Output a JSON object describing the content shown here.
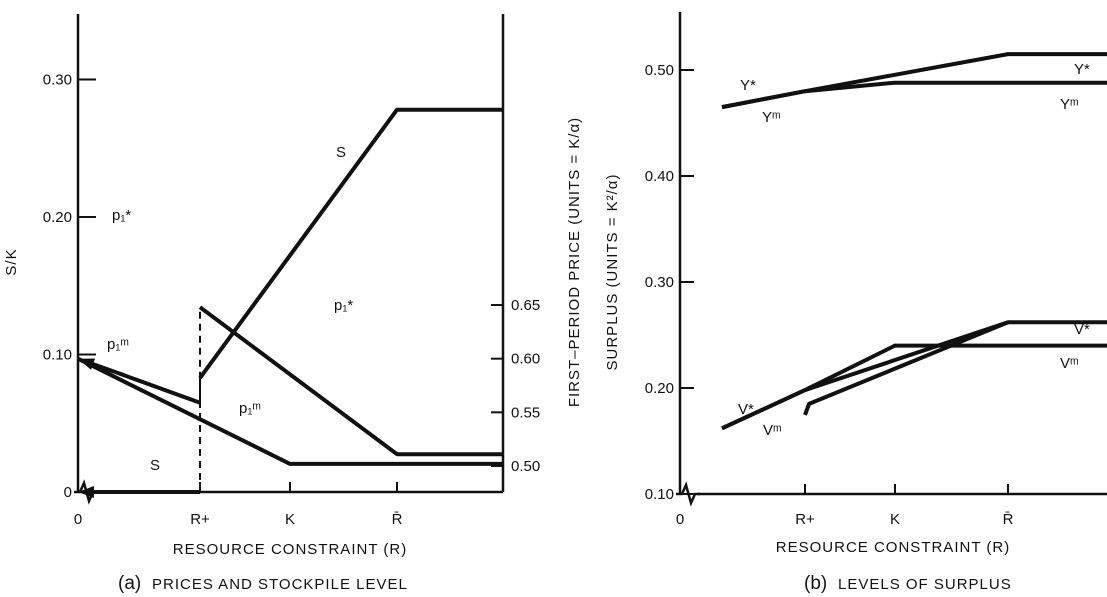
{
  "chart_data": [
    {
      "type": "line",
      "panel": "a",
      "caption_letter": "(a)",
      "caption_text": "PRICES AND STOCKPILE LEVEL",
      "xlabel": "RESOURCE CONSTRAINT (R)",
      "x_ticks": [
        "0",
        "R+",
        "K",
        "R̄"
      ],
      "ylabel_left": "S/K",
      "ylim_left": [
        0,
        0.3
      ],
      "yticks_left": [
        "0",
        "0.10",
        "0.20",
        "0.30"
      ],
      "ylabel_right": "FIRST–PERIOD PRICE (UNITS = K/α)",
      "ylim_right": [
        0.5,
        0.65
      ],
      "yticks_right": [
        "0.50",
        "0.55",
        "0.60",
        "0.65"
      ],
      "x_points": [
        "0",
        "R+",
        "K",
        "R̄",
        "end"
      ],
      "series": [
        {
          "name": "S",
          "labels": [
            "S",
            "S"
          ],
          "axis": "left",
          "segments": [
            {
              "x": [
                "R+",
                "0"
              ],
              "y": [
                0,
                0
              ],
              "arrow": "start"
            },
            {
              "x": [
                "R+",
                "R+"
              ],
              "y": [
                0,
                0.083
              ],
              "style": "dashed"
            },
            {
              "x": [
                "R+",
                "R̄",
                "end"
              ],
              "y": [
                0.083,
                0.278,
                0.278
              ]
            }
          ]
        },
        {
          "name": "p1*",
          "labels": [
            "p₁*",
            "p₁*"
          ],
          "axis": "right",
          "segments": [
            {
              "x": [
                "R+",
                "0"
              ],
              "y": [
                0.559,
                0.6
              ],
              "arrow": "start"
            },
            {
              "x": [
                "R+",
                "R+"
              ],
              "y": [
                0.559,
                0.648
              ],
              "style": "dashed"
            },
            {
              "x": [
                "R+",
                "R̄",
                "end"
              ],
              "y": [
                0.648,
                0.511,
                0.511
              ]
            }
          ]
        },
        {
          "name": "p1m",
          "labels": [
            "p₁ᵐ",
            "p₁ᵐ"
          ],
          "axis": "right",
          "segments": [
            {
              "x": [
                "0",
                "K",
                "end"
              ],
              "y": [
                0.6,
                0.502,
                0.502
              ]
            }
          ]
        }
      ]
    },
    {
      "type": "line",
      "panel": "b",
      "caption_letter": "(b)",
      "caption_text": "LEVELS OF SURPLUS",
      "xlabel": "RESOURCE CONSTRAINT (R)",
      "x_ticks": [
        "0",
        "R+",
        "K",
        "R̄"
      ],
      "ylabel": "SURPLUS (UNITS = K²/α)",
      "ylim": [
        0.1,
        0.5
      ],
      "yticks": [
        "0.10",
        "0.20",
        "0.30",
        "0.40",
        "0.50"
      ],
      "series": [
        {
          "name": "Y*",
          "labels": [
            "Y*",
            "Y*"
          ],
          "x": [
            "0",
            "R+",
            "R̄",
            "end"
          ],
          "y": [
            0.465,
            0.48,
            0.515,
            0.515
          ]
        },
        {
          "name": "Ym",
          "labels": [
            "Yᵐ",
            "Yᵐ"
          ],
          "x": [
            "0",
            "R+",
            "K",
            "end"
          ],
          "y": [
            0.465,
            0.48,
            0.488,
            0.488
          ]
        },
        {
          "name": "V*",
          "labels": [
            "V*",
            "V*"
          ],
          "x": [
            "0",
            "R+",
            "R̄",
            "end"
          ],
          "y": [
            0.162,
            0.198,
            0.262,
            0.262
          ]
        },
        {
          "name": "Vm",
          "labels": [
            "Vᵐ",
            "Vᵐ"
          ],
          "segments": [
            {
              "x": [
                "0",
                "R+",
                "K",
                "end"
              ],
              "y": [
                0.162,
                0.198,
                0.24,
                0.24
              ]
            },
            {
              "x": [
                "R+",
                "R̄"
              ],
              "y": [
                0.185,
                0.262
              ]
            }
          ]
        }
      ]
    }
  ]
}
